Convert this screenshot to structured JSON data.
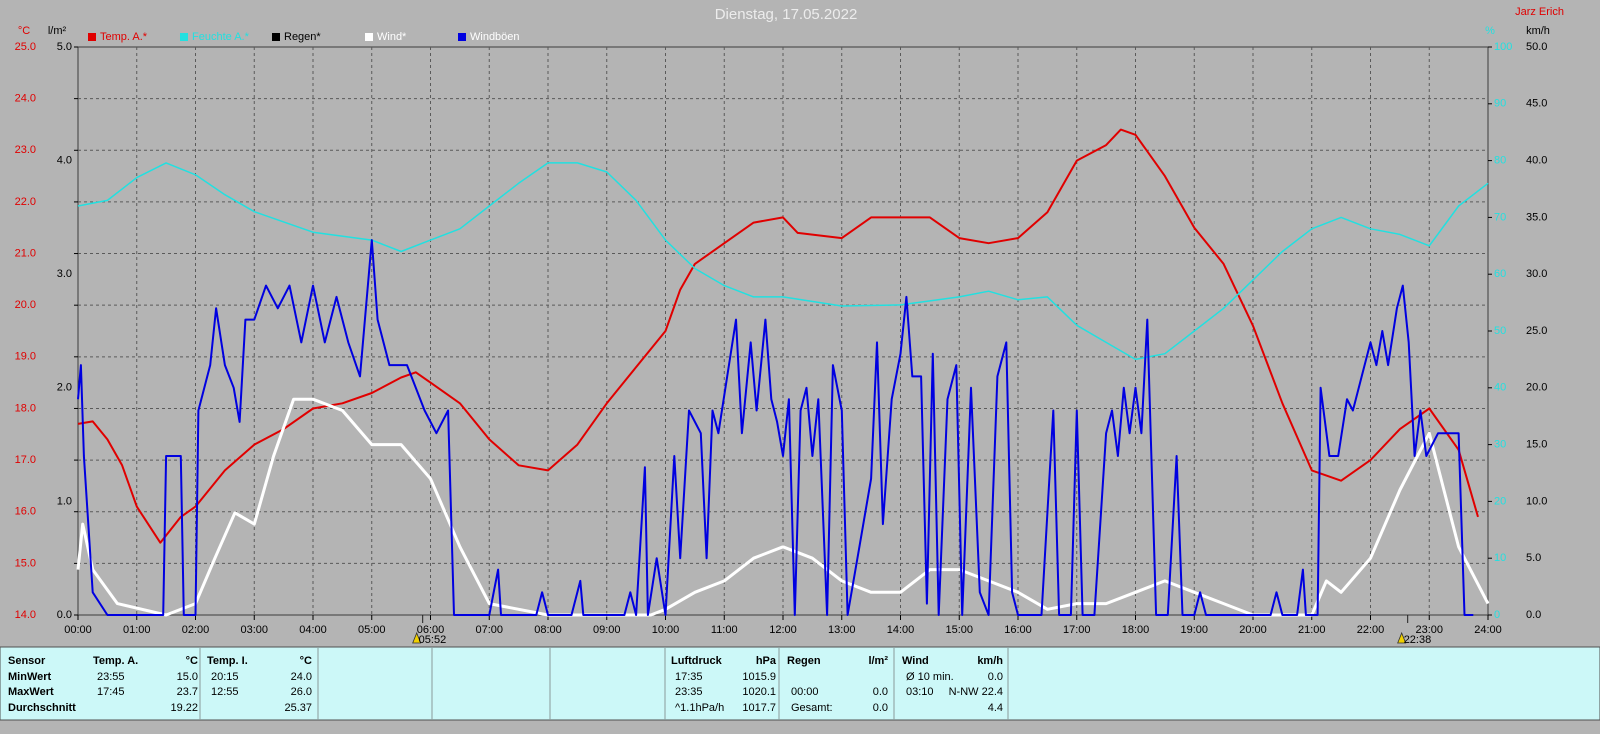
{
  "chart_data": {
    "type": "line",
    "title": "Dienstag, 17.05.2022",
    "author": "Jarz Erich",
    "grid": true,
    "xlim": [
      0,
      24
    ],
    "xticks": [
      {
        "value": 0,
        "label": "00:00"
      },
      {
        "value": 1,
        "label": "01:00"
      },
      {
        "value": 2,
        "label": "02:00"
      },
      {
        "value": 3,
        "label": "03:00"
      },
      {
        "value": 4,
        "label": "04:00"
      },
      {
        "value": 5,
        "label": "05:00"
      },
      {
        "value": 6,
        "label": "06:00"
      },
      {
        "value": 7,
        "label": "07:00"
      },
      {
        "value": 8,
        "label": "08:00"
      },
      {
        "value": 9,
        "label": "09:00"
      },
      {
        "value": 10,
        "label": "10:00"
      },
      {
        "value": 11,
        "label": "11:00"
      },
      {
        "value": 12,
        "label": "12:00"
      },
      {
        "value": 13,
        "label": "13:00"
      },
      {
        "value": 14,
        "label": "14:00"
      },
      {
        "value": 15,
        "label": "15:00"
      },
      {
        "value": 16,
        "label": "16:00"
      },
      {
        "value": 17,
        "label": "17:00"
      },
      {
        "value": 18,
        "label": "18:00"
      },
      {
        "value": 19,
        "label": "19:00"
      },
      {
        "value": 20,
        "label": "20:00"
      },
      {
        "value": 21,
        "label": "21:00"
      },
      {
        "value": 22,
        "label": "22:00"
      },
      {
        "value": 23,
        "label": "23:00"
      },
      {
        "value": 24,
        "label": "24:00"
      }
    ],
    "axes": [
      {
        "unit": "°C",
        "color": "#e00000",
        "lim": [
          14,
          25
        ],
        "ticks": [
          {
            "value": 14,
            "label": "14.0"
          },
          {
            "value": 15,
            "label": "15.0"
          },
          {
            "value": 16,
            "label": "16.0"
          },
          {
            "value": 17,
            "label": "17.0"
          },
          {
            "value": 18,
            "label": "18.0"
          },
          {
            "value": 19,
            "label": "19.0"
          },
          {
            "value": 20,
            "label": "20.0"
          },
          {
            "value": 21,
            "label": "21.0"
          },
          {
            "value": 22,
            "label": "22.0"
          },
          {
            "value": 23,
            "label": "23.0"
          },
          {
            "value": 24,
            "label": "24.0"
          },
          {
            "value": 25,
            "label": "25.0"
          }
        ]
      },
      {
        "unit": "l/m²",
        "color": "#000000",
        "lim": [
          0,
          5
        ],
        "ticks": [
          {
            "value": 0,
            "label": "0.0"
          },
          {
            "value": 1,
            "label": "1.0"
          },
          {
            "value": 2,
            "label": "2.0"
          },
          {
            "value": 3,
            "label": "3.0"
          },
          {
            "value": 4,
            "label": "4.0"
          },
          {
            "value": 5,
            "label": "5.0"
          }
        ]
      },
      {
        "unit": "%",
        "color": "#22e0e0",
        "lim": [
          0,
          100
        ],
        "ticks": [
          0,
          10,
          20,
          30,
          40,
          50,
          60,
          70,
          80,
          90,
          100
        ]
      },
      {
        "unit": "km/h",
        "color": "#000000",
        "lim": [
          0,
          50
        ],
        "ticks": [
          {
            "value": 0,
            "label": "0.0"
          },
          {
            "value": 5,
            "label": "5.0"
          },
          {
            "value": 10,
            "label": "10.0"
          },
          {
            "value": 15,
            "label": "15.0"
          },
          {
            "value": 20,
            "label": "20.0"
          },
          {
            "value": 25,
            "label": "25.0"
          },
          {
            "value": 30,
            "label": "30.0"
          },
          {
            "value": 35,
            "label": "35.0"
          },
          {
            "value": 40,
            "label": "40.0"
          },
          {
            "value": 45,
            "label": "45.0"
          },
          {
            "value": 50,
            "label": "50.0"
          }
        ]
      }
    ],
    "series": [
      {
        "name": "Temp. A.*",
        "color": "#e00000",
        "label_color": "#e00000",
        "axis": 0,
        "width": 2,
        "x": [
          0,
          0.25,
          0.5,
          0.75,
          1,
          1.4,
          1.75,
          2,
          2.5,
          3,
          3.5,
          4,
          4.5,
          5,
          5.5,
          5.75,
          6,
          6.5,
          7,
          7.5,
          8,
          8.5,
          9,
          9.5,
          10,
          10.25,
          10.5,
          11,
          11.5,
          12,
          12.25,
          13,
          13.5,
          14,
          14.5,
          15,
          15.5,
          16,
          16.5,
          17,
          17.5,
          17.75,
          18,
          18.5,
          19,
          19.5,
          20,
          20.5,
          21,
          21.5,
          22,
          22.5,
          23,
          23.5,
          23.83
        ],
        "values": [
          17.7,
          17.75,
          17.4,
          16.9,
          16.1,
          15.4,
          15.9,
          16.1,
          16.8,
          17.3,
          17.6,
          18.0,
          18.1,
          18.3,
          18.6,
          18.7,
          18.5,
          18.1,
          17.4,
          16.9,
          16.8,
          17.3,
          18.1,
          18.8,
          19.5,
          20.3,
          20.8,
          21.2,
          21.6,
          21.7,
          21.4,
          21.3,
          21.7,
          21.7,
          21.7,
          21.3,
          21.2,
          21.3,
          21.8,
          22.8,
          23.1,
          23.4,
          23.3,
          22.5,
          21.5,
          20.8,
          19.6,
          18.1,
          16.8,
          16.6,
          17.0,
          17.6,
          18.0,
          17.2,
          15.9
        ]
      },
      {
        "name": "Feuchte A.*",
        "color": "#22e0e0",
        "label_color": "#22e0e0",
        "axis": 2,
        "width": 1.5,
        "x": [
          0,
          0.5,
          1,
          1.5,
          2,
          2.5,
          3,
          4,
          5,
          5.5,
          6,
          6.5,
          7,
          7.5,
          8,
          8.5,
          9,
          9.5,
          10,
          10.5,
          11,
          11.5,
          12,
          13,
          14,
          15,
          15.5,
          16,
          16.5,
          17,
          17.5,
          18,
          18.5,
          19,
          19.5,
          20,
          20.5,
          21,
          21.5,
          22,
          22.5,
          23,
          23.5,
          24
        ],
        "values": [
          72,
          73,
          77,
          79.6,
          77.5,
          74,
          71,
          67.4,
          66,
          64,
          66,
          68,
          72,
          76,
          79.6,
          79.6,
          78,
          73,
          66,
          61,
          58,
          56,
          56,
          54.4,
          54.6,
          56,
          57,
          55.5,
          56,
          51,
          48,
          45,
          46,
          50,
          54,
          59,
          64,
          68,
          70,
          68,
          67,
          65,
          72,
          76
        ]
      },
      {
        "name": "Regen*",
        "color": "#000000",
        "label_color": "#000000",
        "axis": 1,
        "width": 2
      },
      {
        "name": "Wind*",
        "color": "#ffffff",
        "label_color": "#ffffff",
        "axis": 3,
        "width": 3,
        "x": [
          0,
          0.08,
          0.25,
          0.67,
          1.5,
          2,
          2.33,
          2.67,
          3,
          3.33,
          3.67,
          4,
          4.5,
          5,
          5.5,
          6,
          6.5,
          7,
          8,
          9,
          9.75,
          10,
          10.5,
          11,
          11.5,
          12,
          12.5,
          13,
          13.5,
          14,
          14.5,
          15,
          15.5,
          16,
          16.5,
          17,
          17.5,
          18,
          18.5,
          19,
          19.5,
          20,
          21,
          21.25,
          21.5,
          22,
          22.5,
          23,
          23.25,
          23.5,
          24
        ],
        "values": [
          4,
          8,
          4,
          1,
          0,
          1,
          5,
          9,
          8,
          14,
          19,
          19,
          18,
          15,
          15,
          12,
          6,
          1,
          0,
          0,
          0,
          0.5,
          2,
          3,
          5,
          6,
          5,
          3,
          2,
          2,
          4,
          4,
          3,
          2,
          0.5,
          1,
          1,
          2,
          3,
          2,
          1,
          0,
          0,
          3,
          2,
          5,
          11,
          16,
          11,
          6,
          1
        ]
      },
      {
        "name": "Windböen",
        "color": "#0000e0",
        "label_color": "#ffffff",
        "axis": 3,
        "width": 2,
        "x": [
          0,
          0.05,
          0.1,
          0.25,
          0.5,
          1.45,
          1.5,
          1.75,
          1.8,
          2.0,
          2.05,
          2.25,
          2.35,
          2.5,
          2.65,
          2.75,
          2.85,
          3.0,
          3.2,
          3.4,
          3.6,
          3.8,
          4.0,
          4.2,
          4.4,
          4.6,
          4.8,
          5.0,
          5.1,
          5.3,
          5.6,
          5.9,
          6.1,
          6.3,
          6.4,
          7.0,
          7.15,
          7.2,
          7.8,
          7.9,
          8.0,
          8.4,
          8.55,
          8.6,
          9.3,
          9.4,
          9.5,
          9.65,
          9.7,
          9.85,
          10.0,
          10.15,
          10.25,
          10.4,
          10.6,
          10.7,
          10.8,
          10.9,
          11.05,
          11.2,
          11.3,
          11.45,
          11.55,
          11.7,
          11.8,
          11.9,
          12.0,
          12.1,
          12.2,
          12.3,
          12.4,
          12.5,
          12.6,
          12.75,
          12.85,
          13.0,
          13.1,
          13.3,
          13.5,
          13.6,
          13.7,
          13.85,
          14.0,
          14.1,
          14.2,
          14.35,
          14.45,
          14.55,
          14.65,
          14.8,
          14.95,
          15.05,
          15.2,
          15.35,
          15.5,
          15.65,
          15.8,
          15.9,
          16.0,
          16.4,
          16.6,
          16.7,
          16.9,
          17.0,
          17.1,
          17.3,
          17.5,
          17.6,
          17.7,
          17.8,
          17.9,
          18.0,
          18.1,
          18.2,
          18.35,
          18.55,
          18.7,
          18.8,
          19.0,
          19.1,
          19.2,
          20.3,
          20.4,
          20.5,
          20.75,
          20.85,
          20.9,
          21.1,
          21.15,
          21.3,
          21.45,
          21.6,
          21.7,
          21.85,
          22.0,
          22.1,
          22.2,
          22.3,
          22.45,
          22.55,
          22.65,
          22.75,
          22.85,
          22.95,
          23.15,
          23.35,
          23.5,
          23.6,
          23.75
        ],
        "values": [
          19,
          22,
          14,
          2,
          0,
          0,
          14,
          14,
          0,
          0,
          18,
          22,
          27,
          22,
          20,
          17,
          26,
          26,
          29,
          27,
          29,
          24,
          29,
          24,
          28,
          24,
          21,
          33,
          26,
          22,
          22,
          18,
          16,
          18,
          0,
          0,
          4,
          0,
          0,
          2,
          0,
          0,
          3,
          0,
          0,
          2,
          0,
          13,
          0,
          5,
          0,
          14,
          5,
          18,
          16,
          5,
          18,
          16,
          21,
          26,
          16,
          24,
          18,
          26,
          19,
          17,
          14,
          19,
          0,
          18,
          20,
          14,
          19,
          0,
          22,
          18,
          0,
          6,
          12,
          24,
          8,
          19,
          23,
          28,
          21,
          21,
          1,
          23,
          0,
          19,
          22,
          0,
          20,
          2,
          0,
          21,
          24,
          2,
          0,
          0,
          18,
          0,
          0,
          18,
          0,
          0,
          16,
          18,
          14,
          20,
          16,
          20,
          16,
          26,
          0,
          0,
          14,
          0,
          0,
          2,
          0,
          0,
          2,
          0,
          0,
          4,
          0,
          0,
          20,
          14,
          14,
          19,
          18,
          21,
          24,
          22,
          25,
          22,
          27,
          29,
          24,
          14,
          18,
          14,
          16,
          16,
          16,
          0,
          0
        ]
      }
    ],
    "annotations": [
      {
        "x": 5.867,
        "text": "05:52"
      },
      {
        "x": 22.633,
        "text": "22:38"
      }
    ]
  },
  "table": {
    "sensor": {
      "title": "Sensor",
      "rows": [
        "MinWert",
        "MaxWert",
        "Durchschnitt"
      ]
    },
    "blocks": [
      {
        "title": "Temp. A.",
        "unit": "°C",
        "rows": [
          [
            "23:55",
            "15.0"
          ],
          [
            "17:45",
            "23.7"
          ],
          [
            null,
            "19.22"
          ]
        ]
      },
      {
        "title": "Temp. I.",
        "unit": "°C",
        "rows": [
          [
            "20:15",
            "24.0"
          ],
          [
            "12:55",
            "26.0"
          ],
          [
            null,
            "25.37"
          ]
        ]
      },
      {
        "title": "Luftdruck",
        "unit": "hPa",
        "rows": [
          [
            "17:35",
            "1015.9"
          ],
          [
            "23:35",
            "1020.1"
          ],
          [
            "^1.1hPa/h",
            "1017.7"
          ]
        ]
      },
      {
        "title": "Regen",
        "unit": "l/m²",
        "rows": [
          [
            null,
            null
          ],
          [
            "00:00",
            "0.0"
          ],
          [
            "Gesamt:",
            "0.0"
          ]
        ]
      },
      {
        "title": "Wind",
        "unit": "km/h",
        "rows": [
          [
            "Ø 10 min.",
            "0.0"
          ],
          [
            "03:10",
            "N-NW 22.4"
          ],
          [
            null,
            "4.4"
          ]
        ]
      }
    ]
  }
}
